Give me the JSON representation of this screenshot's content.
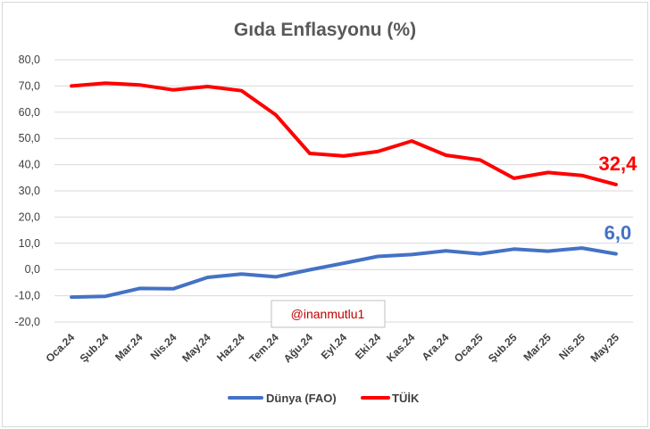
{
  "chart_data": {
    "type": "line",
    "title": "Gıda Enflasyonu (%)",
    "categories": [
      "Oca.24",
      "Şub.24",
      "Mar.24",
      "Nis.24",
      "May.24",
      "Haz.24",
      "Tem.24",
      "Ağu.24",
      "Eyl.24",
      "Eki.24",
      "Kas.24",
      "Ara.24",
      "Oca.25",
      "Şub.25",
      "Mar.25",
      "Nis.25",
      "May.25"
    ],
    "y_ticks": [
      "80,0",
      "70,0",
      "60,0",
      "50,0",
      "40,0",
      "30,0",
      "20,0",
      "10,0",
      "0,0",
      "-10,0",
      "-20,0"
    ],
    "ylim": [
      -20,
      80
    ],
    "grid": true,
    "legend_position": "bottom",
    "series": [
      {
        "name": "Dünya (FAO)",
        "color": "#4472c4",
        "values": [
          -10.5,
          -10.2,
          -7.2,
          -7.3,
          -3.0,
          -1.7,
          -2.8,
          -0.1,
          2.4,
          5.0,
          5.7,
          7.1,
          6.0,
          7.8,
          7.0,
          8.2,
          6.0
        ],
        "end_label": "6,0"
      },
      {
        "name": "TÜİK",
        "color": "#ff0000",
        "values": [
          70.0,
          71.1,
          70.4,
          68.5,
          69.8,
          68.2,
          59.0,
          44.3,
          43.3,
          45.0,
          49.0,
          43.6,
          41.8,
          34.8,
          37.0,
          35.9,
          32.4
        ],
        "end_label": "32,4"
      }
    ],
    "annotation": "@inanmutlu1"
  }
}
